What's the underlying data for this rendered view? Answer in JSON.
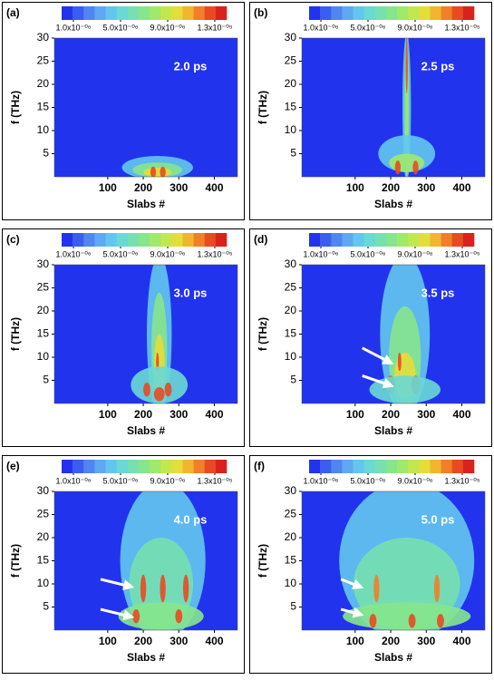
{
  "chart_data": [
    {
      "type": "contour",
      "panel_label": "(a)",
      "annotation": "2.0 ps",
      "xlabel": "Slabs #",
      "ylabel": "f (THz)",
      "xlim": [
        -50,
        465
      ],
      "xticks": [
        100,
        200,
        300,
        400
      ],
      "ylim": [
        0,
        30
      ],
      "yticks": [
        5,
        10,
        15,
        20,
        25,
        30
      ],
      "colorbar": {
        "lim": [
          0,
          1.4e-05
        ],
        "colors": [
          "#2233ee",
          "#3a5ff0",
          "#4f86f2",
          "#5fa8f2",
          "#63c6ee",
          "#6ad8d4",
          "#76e0b0",
          "#86e68c",
          "#9fe96b",
          "#c3e84f",
          "#e4dd3a",
          "#f1b52e",
          "#f07f27",
          "#e84a22",
          "#d9221c"
        ],
        "ticks": [
          {
            "value": 1e-06,
            "label": "1.0x10⁻⁰⁶"
          },
          {
            "value": 5e-06,
            "label": "5.0x10⁻⁰⁶"
          },
          {
            "value": 9e-06,
            "label": "9.0x10⁻⁰⁶"
          },
          {
            "value": 1.3e-05,
            "label": "1.3x10⁻⁰⁵"
          }
        ]
      }
    },
    {
      "type": "contour",
      "panel_label": "(b)",
      "annotation": "2.5 ps",
      "xlabel": "Slabs #",
      "ylabel": "f (THz)",
      "xlim": [
        -50,
        465
      ],
      "xticks": [
        100,
        200,
        300,
        400
      ],
      "ylim": [
        0,
        30
      ],
      "yticks": [
        5,
        10,
        15,
        20,
        25,
        30
      ],
      "colorbar": {
        "lim": [
          0,
          1.4e-05
        ],
        "colors": [
          "#2233ee",
          "#3a5ff0",
          "#4f86f2",
          "#5fa8f2",
          "#63c6ee",
          "#6ad8d4",
          "#76e0b0",
          "#86e68c",
          "#9fe96b",
          "#c3e84f",
          "#e4dd3a",
          "#f1b52e",
          "#f07f27",
          "#e84a22",
          "#d9221c"
        ],
        "ticks": [
          {
            "value": 1e-06,
            "label": "1.0x10⁻⁰⁶"
          },
          {
            "value": 5e-06,
            "label": "5.0x10⁻⁰⁶"
          },
          {
            "value": 9e-06,
            "label": "9.0x10⁻⁰⁶"
          },
          {
            "value": 1.3e-05,
            "label": "1.3x10⁻⁰⁵"
          }
        ]
      }
    },
    {
      "type": "contour",
      "panel_label": "(c)",
      "annotation": "3.0 ps",
      "xlabel": "Slabs #",
      "ylabel": "f (THz)",
      "xlim": [
        -50,
        465
      ],
      "xticks": [
        100,
        200,
        300,
        400
      ],
      "ylim": [
        0,
        30
      ],
      "yticks": [
        5,
        10,
        15,
        20,
        25,
        30
      ],
      "colorbar": {
        "lim": [
          0,
          1.4e-05
        ],
        "colors": [
          "#2233ee",
          "#3a5ff0",
          "#4f86f2",
          "#5fa8f2",
          "#63c6ee",
          "#6ad8d4",
          "#76e0b0",
          "#86e68c",
          "#9fe96b",
          "#c3e84f",
          "#e4dd3a",
          "#f1b52e",
          "#f07f27",
          "#e84a22",
          "#d9221c"
        ],
        "ticks": [
          {
            "value": 1e-06,
            "label": "1.0x10⁻⁰⁶"
          },
          {
            "value": 5e-06,
            "label": "5.0x10⁻⁰⁶"
          },
          {
            "value": 9e-06,
            "label": "9.0x10⁻⁰⁶"
          },
          {
            "value": 1.3e-05,
            "label": "1.3x10⁻⁰⁵"
          }
        ]
      }
    },
    {
      "type": "contour",
      "panel_label": "(d)",
      "annotation": "3.5 ps",
      "xlabel": "Slabs #",
      "ylabel": "f (THz)",
      "xlim": [
        -50,
        465
      ],
      "xticks": [
        100,
        200,
        300,
        400
      ],
      "ylim": [
        0,
        30
      ],
      "yticks": [
        5,
        10,
        15,
        20,
        25,
        30
      ],
      "colorbar": {
        "lim": [
          0,
          1.4e-05
        ],
        "colors": [
          "#2233ee",
          "#3a5ff0",
          "#4f86f2",
          "#5fa8f2",
          "#63c6ee",
          "#6ad8d4",
          "#76e0b0",
          "#86e68c",
          "#9fe96b",
          "#c3e84f",
          "#e4dd3a",
          "#f1b52e",
          "#f07f27",
          "#e84a22",
          "#d9221c"
        ],
        "ticks": [
          {
            "value": 1e-06,
            "label": "1.0x10⁻⁰⁶"
          },
          {
            "value": 5e-06,
            "label": "5.0x10⁻⁰⁶"
          },
          {
            "value": 9e-06,
            "label": "9.0x10⁻⁰⁶"
          },
          {
            "value": 1.3e-05,
            "label": "1.3x10⁻⁰⁵"
          }
        ]
      }
    },
    {
      "type": "contour",
      "panel_label": "(e)",
      "annotation": "4.0 ps",
      "xlabel": "Slabs #",
      "ylabel": "f (THz)",
      "xlim": [
        -50,
        465
      ],
      "xticks": [
        100,
        200,
        300,
        400
      ],
      "ylim": [
        0,
        30
      ],
      "yticks": [
        5,
        10,
        15,
        20,
        25,
        30
      ],
      "colorbar": {
        "lim": [
          0,
          1.4e-05
        ],
        "colors": [
          "#2233ee",
          "#3a5ff0",
          "#4f86f2",
          "#5fa8f2",
          "#63c6ee",
          "#6ad8d4",
          "#76e0b0",
          "#86e68c",
          "#9fe96b",
          "#c3e84f",
          "#e4dd3a",
          "#f1b52e",
          "#f07f27",
          "#e84a22",
          "#d9221c"
        ],
        "ticks": [
          {
            "value": 1e-06,
            "label": "1.0x10⁻⁰⁶"
          },
          {
            "value": 5e-06,
            "label": "5.0x10⁻⁰⁶"
          },
          {
            "value": 9e-06,
            "label": "9.0x10⁻⁰⁶"
          },
          {
            "value": 1.3e-05,
            "label": "1.3x10⁻⁰⁵"
          }
        ]
      }
    },
    {
      "type": "contour",
      "panel_label": "(f)",
      "annotation": "5.0 ps",
      "xlabel": "Slabs #",
      "ylabel": "f (THz)",
      "xlim": [
        -50,
        465
      ],
      "xticks": [
        100,
        200,
        300,
        400
      ],
      "ylim": [
        0,
        30
      ],
      "yticks": [
        5,
        10,
        15,
        20,
        25,
        30
      ],
      "colorbar": {
        "lim": [
          0,
          1.4e-05
        ],
        "colors": [
          "#2233ee",
          "#3a5ff0",
          "#4f86f2",
          "#5fa8f2",
          "#63c6ee",
          "#6ad8d4",
          "#76e0b0",
          "#86e68c",
          "#9fe96b",
          "#c3e84f",
          "#e4dd3a",
          "#f1b52e",
          "#f07f27",
          "#e84a22",
          "#d9221c"
        ],
        "ticks": [
          {
            "value": 1e-06,
            "label": "1.0x10⁻⁰⁶"
          },
          {
            "value": 5e-06,
            "label": "5.0x10⁻⁰⁶"
          },
          {
            "value": 9e-06,
            "label": "9.0x10⁻⁰⁶"
          },
          {
            "value": 1.3e-05,
            "label": "1.3x10⁻⁰⁵"
          }
        ]
      }
    }
  ]
}
